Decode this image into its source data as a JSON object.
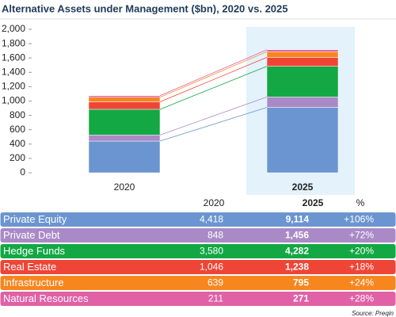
{
  "chart_data": {
    "type": "stacked_bar",
    "title": "Alternative Assets under Management ($bn), 2020 vs. 2025",
    "categories": [
      "2020",
      "2025"
    ],
    "series": [
      {
        "name": "Private Equity",
        "color": "#6b95d0",
        "values": [
          441.8,
          911.4
        ]
      },
      {
        "name": "Private Debt",
        "color": "#a98ac6",
        "values": [
          84.8,
          145.6
        ]
      },
      {
        "name": "Hedge Funds",
        "color": "#13a843",
        "values": [
          358.0,
          428.2
        ]
      },
      {
        "name": "Real Estate",
        "color": "#ee4537",
        "values": [
          104.6,
          123.8
        ]
      },
      {
        "name": "Infrastructure",
        "color": "#f7861f",
        "values": [
          63.9,
          79.5
        ]
      },
      {
        "name": "Natural Resources",
        "color": "#e061a6",
        "values": [
          21.1,
          27.1
        ]
      }
    ],
    "ylim": [
      0,
      2000
    ],
    "yticks": [
      0,
      200,
      400,
      600,
      800,
      {
        "value": 1000,
        "label": "1,000"
      },
      {
        "value": 1200,
        "label": "1,200"
      },
      {
        "value": 1400,
        "label": "1,400"
      },
      {
        "value": 1600,
        "label": "1,600"
      },
      {
        "value": 1800,
        "label": "1,800"
      },
      {
        "value": 2000,
        "label": "2,000"
      }
    ],
    "highlight_color": "#e3f2fb"
  },
  "table": {
    "header": "%",
    "rows": [
      [
        "4,418",
        "9,114",
        "+106%"
      ],
      [
        "848",
        "1,456",
        "+72%"
      ],
      [
        "3,580",
        "4,282",
        "+20%"
      ],
      [
        "1,046",
        "1,238",
        "+18%"
      ],
      [
        "639",
        "795",
        "+24%"
      ],
      [
        "211",
        "271",
        "+28%"
      ]
    ]
  },
  "source": "Source: Preqin"
}
